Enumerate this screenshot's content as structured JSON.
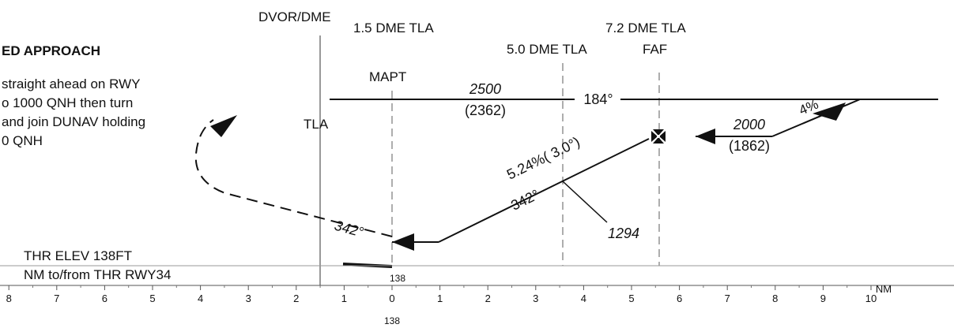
{
  "header": {
    "title_fragment": "ED APPROACH",
    "missed_approach_lines": [
      "straight ahead on RWY",
      "o 1000 QNH then turn",
      "and join DUNAV holding",
      "0 QNH"
    ]
  },
  "fixes": {
    "dvor_dme": "DVOR/DME",
    "tla": "TLA",
    "dme_1_5": "1.5 DME TLA",
    "mapt": "MAPT",
    "dme_5_0": "5.0 DME TLA",
    "dme_7_2": "7.2 DME TLA",
    "faf": "FAF"
  },
  "profile": {
    "msa_alt": "2500",
    "msa_height": "(2362)",
    "outbound_track": "184°",
    "faf_alt": "2000",
    "faf_height": "(1862)",
    "intermediate_gradient": "4%",
    "descent_gradient": "5.24%( 3.0°)",
    "final_track": "342°",
    "missed_track": "342°",
    "step_alt": "1294"
  },
  "baseline": {
    "thr_elev": "THR ELEV 138FT",
    "distance_label": "NM to/from THR RWY34",
    "thr_value": "138",
    "scale_below_value": "138",
    "unit": "NM",
    "ticks_left": [
      "8",
      "7",
      "6",
      "5",
      "4",
      "3",
      "2",
      "1"
    ],
    "ticks_right": [
      "0",
      "1",
      "2",
      "3",
      "4",
      "5",
      "6",
      "7",
      "8",
      "9",
      "10"
    ]
  },
  "icons": {
    "faf_symbol": "maltese-cross-icon",
    "arrowheads": "arrowhead-icon"
  }
}
